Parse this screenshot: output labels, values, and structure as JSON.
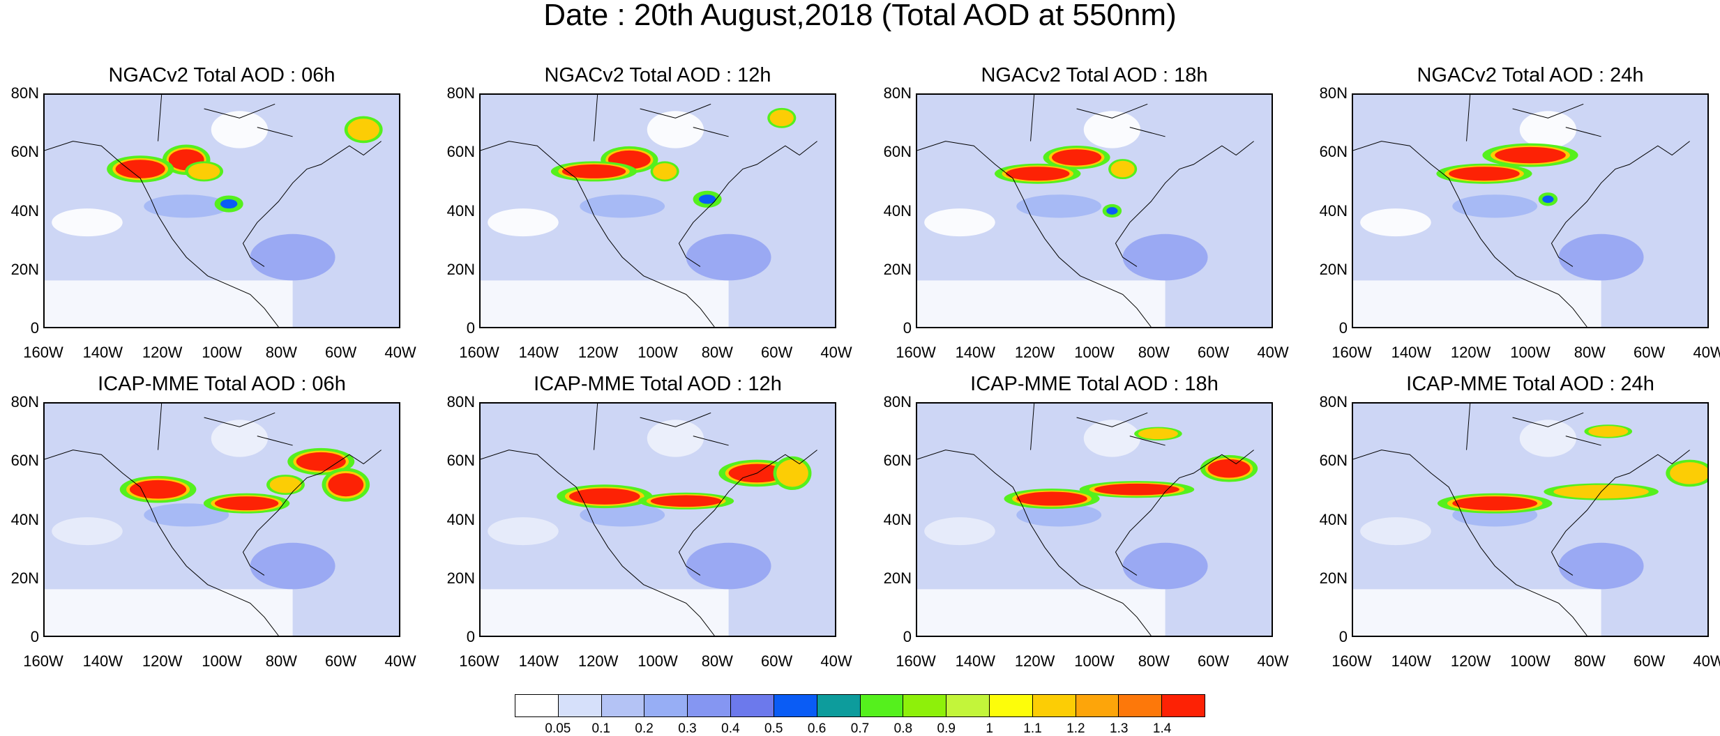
{
  "title": "Date : 20th August,2018 (Total AOD at 550nm)",
  "panels": [
    {
      "title": "NGACv2 Total AOD : 06h",
      "model": "NGACv2",
      "hour": "06h"
    },
    {
      "title": "NGACv2 Total AOD : 12h",
      "model": "NGACv2",
      "hour": "12h"
    },
    {
      "title": "NGACv2 Total AOD : 18h",
      "model": "NGACv2",
      "hour": "18h"
    },
    {
      "title": "NGACv2 Total AOD : 24h",
      "model": "NGACv2",
      "hour": "24h"
    },
    {
      "title": "ICAP-MME Total AOD : 06h",
      "model": "ICAP-MME",
      "hour": "06h"
    },
    {
      "title": "ICAP-MME Total AOD : 12h",
      "model": "ICAP-MME",
      "hour": "12h"
    },
    {
      "title": "ICAP-MME Total AOD : 18h",
      "model": "ICAP-MME",
      "hour": "18h"
    },
    {
      "title": "ICAP-MME Total AOD : 24h",
      "model": "ICAP-MME",
      "hour": "24h"
    }
  ],
  "map": {
    "lon_range": [
      -160,
      -40
    ],
    "lat_range": [
      0,
      80
    ],
    "lat_ticks": [
      "80N",
      "60N",
      "40N",
      "20N",
      "0"
    ],
    "lon_ticks": [
      "160W",
      "140W",
      "120W",
      "100W",
      "80W",
      "60W",
      "40W"
    ]
  },
  "colorbar": {
    "levels": [
      "0.05",
      "0.1",
      "0.2",
      "0.3",
      "0.4",
      "0.5",
      "0.6",
      "0.7",
      "0.8",
      "0.9",
      "1",
      "1.1",
      "1.2",
      "1.3",
      "1.4"
    ],
    "colors": [
      "#ffffff",
      "#d6e0fa",
      "#b4c3f5",
      "#97aef5",
      "#8596f2",
      "#6c79ec",
      "#0a5cf5",
      "#0d9c9c",
      "#55f01d",
      "#8ef00a",
      "#c3f53a",
      "#fdfd0a",
      "#fccd05",
      "#fda50a",
      "#fd780a",
      "#fd2205"
    ]
  }
}
